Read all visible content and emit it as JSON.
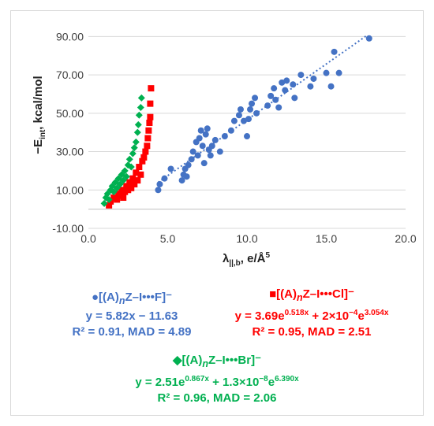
{
  "chart_data": {
    "type": "scatter",
    "xlabel": "λ||,b, e/Å⁵",
    "ylabel": "−Eint, kcal/mol",
    "xlim": [
      0,
      20
    ],
    "ylim": [
      -10,
      100
    ],
    "xticks": [
      "0.0",
      "5.0",
      "10.0",
      "15.0",
      "20.0"
    ],
    "yticks": [
      "-10.00",
      "10.00",
      "30.00",
      "50.00",
      "70.00",
      "90.00"
    ],
    "grid": "horizontal",
    "series": [
      {
        "name": "[(A)nZ–I•••F]⁻",
        "color": "#4472C4",
        "marker": "circle",
        "fit": "y = 5.82x − 11.63",
        "stats": "R² = 0.91, MAD = 4.89",
        "fit_line": {
          "x1": 4.4,
          "y1": 13.96,
          "x2": 17.6,
          "y2": 90.8
        },
        "points": [
          [
            4.4,
            10
          ],
          [
            4.5,
            13
          ],
          [
            4.8,
            16
          ],
          [
            5.2,
            21
          ],
          [
            5.9,
            15
          ],
          [
            6.0,
            18
          ],
          [
            6.1,
            21
          ],
          [
            6.2,
            17
          ],
          [
            6.3,
            23
          ],
          [
            6.5,
            26
          ],
          [
            6.6,
            30
          ],
          [
            6.8,
            35
          ],
          [
            6.9,
            28
          ],
          [
            7.0,
            37
          ],
          [
            7.1,
            41
          ],
          [
            7.2,
            33
          ],
          [
            7.3,
            24
          ],
          [
            7.4,
            39
          ],
          [
            7.5,
            42
          ],
          [
            7.6,
            31
          ],
          [
            7.7,
            28
          ],
          [
            7.8,
            33
          ],
          [
            8.0,
            36
          ],
          [
            8.3,
            30
          ],
          [
            8.6,
            38
          ],
          [
            9.0,
            41
          ],
          [
            9.2,
            46
          ],
          [
            9.5,
            49
          ],
          [
            9.6,
            52
          ],
          [
            9.8,
            46
          ],
          [
            10.0,
            38
          ],
          [
            10.1,
            47
          ],
          [
            10.2,
            52
          ],
          [
            10.3,
            55
          ],
          [
            10.5,
            58
          ],
          [
            10.6,
            50
          ],
          [
            11.3,
            54
          ],
          [
            11.5,
            59
          ],
          [
            11.7,
            63
          ],
          [
            11.8,
            57
          ],
          [
            12.0,
            53
          ],
          [
            12.2,
            66
          ],
          [
            12.4,
            62
          ],
          [
            12.5,
            67
          ],
          [
            12.9,
            65
          ],
          [
            13.0,
            58
          ],
          [
            13.4,
            70
          ],
          [
            14.0,
            64
          ],
          [
            14.2,
            68
          ],
          [
            15.0,
            71
          ],
          [
            15.3,
            64
          ],
          [
            15.5,
            82
          ],
          [
            15.8,
            71
          ],
          [
            17.7,
            89
          ]
        ]
      },
      {
        "name": "[(A)nZ–I•••Cl]⁻",
        "color": "#FF0000",
        "marker": "square",
        "fit": "y = 3.69e^(0.518x) + 2×10⁻⁴e^(3.054x)",
        "stats": "R² = 0.95, MAD = 2.51",
        "points": [
          [
            1.3,
            2
          ],
          [
            1.4,
            4
          ],
          [
            1.6,
            6
          ],
          [
            1.8,
            5
          ],
          [
            1.9,
            8
          ],
          [
            2.0,
            7
          ],
          [
            2.1,
            10
          ],
          [
            2.2,
            6
          ],
          [
            2.3,
            9
          ],
          [
            2.4,
            12
          ],
          [
            2.5,
            10
          ],
          [
            2.6,
            14
          ],
          [
            2.7,
            11
          ],
          [
            2.8,
            16
          ],
          [
            2.9,
            13
          ],
          [
            3.0,
            19
          ],
          [
            3.1,
            15
          ],
          [
            3.2,
            22
          ],
          [
            3.3,
            18
          ],
          [
            3.4,
            25
          ],
          [
            3.5,
            27
          ],
          [
            3.6,
            30
          ],
          [
            3.7,
            33
          ],
          [
            3.75,
            37
          ],
          [
            3.8,
            41
          ],
          [
            3.85,
            45
          ],
          [
            3.9,
            48
          ],
          [
            3.9,
            55
          ],
          [
            3.95,
            63
          ]
        ]
      },
      {
        "name": "[(A)nZ–I•••Br]⁻",
        "color": "#00B050",
        "marker": "diamond",
        "fit": "y = 2.51e^(0.867x) + 1.3×10⁻⁸e^(6.390x)",
        "stats": "R² = 0.96, MAD = 2.06",
        "points": [
          [
            1.0,
            3
          ],
          [
            1.1,
            6
          ],
          [
            1.2,
            8
          ],
          [
            1.3,
            5
          ],
          [
            1.4,
            10
          ],
          [
            1.5,
            12
          ],
          [
            1.6,
            9
          ],
          [
            1.7,
            14
          ],
          [
            1.8,
            11
          ],
          [
            1.9,
            16
          ],
          [
            2.0,
            13
          ],
          [
            2.1,
            18
          ],
          [
            2.2,
            15
          ],
          [
            2.3,
            20
          ],
          [
            2.4,
            17
          ],
          [
            2.5,
            23
          ],
          [
            2.6,
            26
          ],
          [
            2.7,
            22
          ],
          [
            2.8,
            29
          ],
          [
            2.9,
            32
          ],
          [
            3.0,
            35
          ],
          [
            3.1,
            40
          ],
          [
            3.15,
            44
          ],
          [
            3.2,
            49
          ],
          [
            3.3,
            53
          ],
          [
            3.35,
            58
          ]
        ]
      }
    ]
  },
  "legend": {
    "f": {
      "symbol": "●",
      "label_pre": "[(A)",
      "label_sub": "n",
      "label_post": "Z–I•••F]⁻",
      "eq": "y = 5.82x − 11.63",
      "stats": "R² = 0.91, MAD = 4.89"
    },
    "cl": {
      "symbol": "■",
      "label_pre": "[(A)",
      "label_sub": "n",
      "label_post": "Z–I•••Cl]⁻",
      "eq_a": "y = 3.69e",
      "eq_a_exp": "0.518x",
      "eq_b": " + 2×10",
      "eq_b_sup": "−4",
      "eq_c": "e",
      "eq_c_exp": "3.054x",
      "stats": "R² = 0.95, MAD = 2.51"
    },
    "br": {
      "symbol": "◆",
      "label_pre": "[(A)",
      "label_sub": "n",
      "label_post": "Z–I•••Br]⁻",
      "eq_a": "y = 2.51e",
      "eq_a_exp": "0.867x",
      "eq_b": " + 1.3×10",
      "eq_b_sup": "−8",
      "eq_c": "e",
      "eq_c_exp": "6.390x",
      "stats": "R² = 0.96, MAD = 2.06"
    }
  }
}
